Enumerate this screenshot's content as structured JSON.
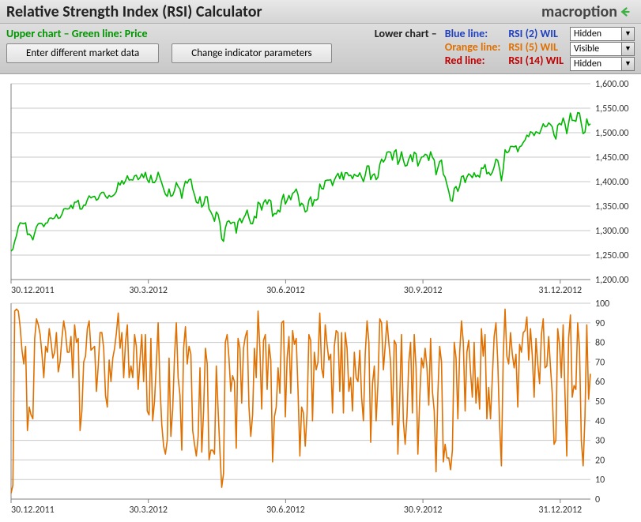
{
  "title": "Relative Strength Index (RSI) Calculator",
  "brand": "macroption",
  "toolbar": {
    "upper_legend_prefix": "Upper chart – Green line: ",
    "upper_legend_value": "Price",
    "btn_market": "Enter different market data",
    "btn_params": "Change indicator parameters",
    "lower_header": "Lower chart –",
    "lines": [
      {
        "label": "Blue line:",
        "series": "RSI (2) WIL",
        "color": "#2040c0",
        "dropdown": "Hidden"
      },
      {
        "label": "Orange line:",
        "series": "RSI (5) WIL",
        "color": "#e07000",
        "dropdown": "Visible"
      },
      {
        "label": "Red line:",
        "series": "RSI (14) WIL",
        "color": "#c00000",
        "dropdown": "Hidden"
      }
    ]
  },
  "upper_chart": {
    "type": "line",
    "line_color": "#00b700",
    "line_width": 1.6,
    "background": "#ffffff",
    "grid_color": "#c8c8c8",
    "axis_color": "#808080",
    "ylim": [
      1200,
      1600
    ],
    "ytick_step": 50,
    "ytick_format": "comma2dec",
    "x_categories": [
      "30.12.2011",
      "30.3.2012",
      "30.6.2012",
      "30.9.2012",
      "31.12.2012"
    ],
    "title_fontsize": 12,
    "data": [
      1258,
      1262,
      1278,
      1290,
      1308,
      1316,
      1315,
      1314,
      1316,
      1292,
      1293,
      1289,
      1281,
      1295,
      1308,
      1314,
      1315,
      1314,
      1308,
      1315,
      1316,
      1325,
      1326,
      1324,
      1326,
      1333,
      1325,
      1326,
      1333,
      1344,
      1345,
      1344,
      1345,
      1352,
      1345,
      1358,
      1358,
      1362,
      1344,
      1344,
      1352,
      1352,
      1363,
      1371,
      1367,
      1369,
      1370,
      1362,
      1365,
      1374,
      1378,
      1378,
      1370,
      1366,
      1372,
      1369,
      1371,
      1374,
      1380,
      1398,
      1393,
      1402,
      1395,
      1402,
      1412,
      1403,
      1404,
      1403,
      1412,
      1413,
      1404,
      1408,
      1416,
      1408,
      1419,
      1404,
      1398,
      1413,
      1398,
      1398,
      1404,
      1419,
      1408,
      1397,
      1385,
      1374,
      1370,
      1385,
      1370,
      1372,
      1382,
      1398,
      1390,
      1385,
      1366,
      1387,
      1401,
      1397,
      1404,
      1405,
      1385,
      1373,
      1358,
      1356,
      1369,
      1348,
      1353,
      1369,
      1369,
      1344,
      1338,
      1330,
      1319,
      1338,
      1333,
      1316,
      1283,
      1278,
      1305,
      1318,
      1320,
      1314,
      1317,
      1317,
      1295,
      1318,
      1325,
      1316,
      1325,
      1332,
      1342,
      1326,
      1314,
      1314,
      1329,
      1326,
      1358,
      1355,
      1342,
      1357,
      1363,
      1354,
      1363,
      1361,
      1329,
      1335,
      1334,
      1342,
      1338,
      1362,
      1374,
      1354,
      1362,
      1372,
      1363,
      1376,
      1379,
      1385,
      1373,
      1350,
      1356,
      1352,
      1338,
      1341,
      1362,
      1369,
      1350,
      1363,
      1362,
      1365,
      1395,
      1386,
      1385,
      1402,
      1403,
      1403,
      1404,
      1392,
      1403,
      1411,
      1417,
      1406,
      1419,
      1404,
      1418,
      1418,
      1412,
      1413,
      1406,
      1415,
      1412,
      1411,
      1418,
      1409,
      1400,
      1413,
      1432,
      1432,
      1404,
      1413,
      1416,
      1404,
      1409,
      1435,
      1446,
      1440,
      1446,
      1460,
      1461,
      1460,
      1444,
      1461,
      1465,
      1435,
      1444,
      1461,
      1444,
      1432,
      1433,
      1446,
      1455,
      1441,
      1460,
      1457,
      1432,
      1441,
      1450,
      1451,
      1456,
      1454,
      1443,
      1461,
      1450,
      1444,
      1414,
      1428,
      1441,
      1444,
      1415,
      1409,
      1394,
      1380,
      1362,
      1360,
      1386,
      1390,
      1380,
      1391,
      1410,
      1412,
      1398,
      1409,
      1416,
      1413,
      1408,
      1418,
      1410,
      1413,
      1409,
      1428,
      1427,
      1435,
      1416,
      1419,
      1413,
      1419,
      1430,
      1446,
      1443,
      1426,
      1402,
      1426,
      1465,
      1459,
      1461,
      1472,
      1472,
      1471,
      1473,
      1461,
      1471,
      1473,
      1480,
      1485,
      1495,
      1492,
      1502,
      1500,
      1494,
      1502,
      1500,
      1498,
      1508,
      1518,
      1512,
      1513,
      1520,
      1517,
      1512,
      1495,
      1487,
      1515,
      1519,
      1516,
      1530,
      1518,
      1498,
      1519,
      1540,
      1525,
      1525,
      1523,
      1541,
      1540,
      1518,
      1498,
      1501,
      1528,
      1515,
      1518
    ]
  },
  "lower_chart": {
    "type": "line",
    "line_color": "#e07000",
    "line_width": 1.6,
    "background": "#ffffff",
    "grid_color": "#c8c8c8",
    "axis_color": "#808080",
    "ylim": [
      0,
      100
    ],
    "ytick_step": 10,
    "x_categories": [
      "30.12.2011",
      "30.3.2012",
      "30.6.2012",
      "30.9.2012",
      "31.12.2012"
    ],
    "data": [
      3,
      7,
      96,
      97,
      96,
      88,
      76,
      69,
      78,
      35,
      47,
      43,
      41,
      82,
      92,
      89,
      84,
      74,
      62,
      78,
      75,
      87,
      80,
      72,
      75,
      85,
      65,
      70,
      82,
      91,
      85,
      75,
      75,
      83,
      62,
      89,
      80,
      82,
      35,
      45,
      70,
      73,
      87,
      91,
      76,
      77,
      78,
      55,
      68,
      85,
      85,
      77,
      53,
      47,
      71,
      60,
      72,
      77,
      85,
      95,
      77,
      85,
      62,
      80,
      89,
      62,
      68,
      62,
      84,
      78,
      56,
      71,
      84,
      60,
      84,
      45,
      43,
      82,
      40,
      50,
      69,
      90,
      58,
      38,
      27,
      23,
      30,
      72,
      32,
      46,
      73,
      90,
      62,
      53,
      25,
      77,
      88,
      69,
      78,
      74,
      35,
      28,
      22,
      32,
      67,
      24,
      45,
      77,
      69,
      20,
      25,
      25,
      23,
      68,
      46,
      25,
      6,
      13,
      80,
      84,
      72,
      55,
      63,
      60,
      26,
      82,
      77,
      49,
      77,
      83,
      86,
      47,
      32,
      43,
      77,
      62,
      96,
      77,
      46,
      81,
      84,
      56,
      79,
      71,
      19,
      42,
      47,
      67,
      54,
      90,
      91,
      42,
      72,
      83,
      54,
      86,
      79,
      82,
      55,
      22,
      47,
      44,
      27,
      44,
      84,
      81,
      40,
      75,
      66,
      70,
      95,
      67,
      62,
      89,
      79,
      71,
      74,
      44,
      78,
      86,
      85,
      55,
      85,
      44,
      85,
      77,
      55,
      62,
      45,
      75,
      62,
      60,
      76,
      52,
      40,
      74,
      91,
      80,
      29,
      59,
      68,
      40,
      59,
      92,
      90,
      66,
      78,
      91,
      80,
      70,
      38,
      81,
      79,
      23,
      51,
      84,
      40,
      28,
      42,
      70,
      80,
      44,
      84,
      67,
      23,
      51,
      72,
      67,
      77,
      67,
      48,
      82,
      55,
      45,
      14,
      54,
      78,
      70,
      19,
      28,
      21,
      21,
      15,
      25,
      80,
      72,
      41,
      75,
      91,
      80,
      45,
      75,
      81,
      65,
      52,
      80,
      49,
      62,
      46,
      87,
      73,
      84,
      41,
      57,
      41,
      62,
      83,
      90,
      70,
      38,
      17,
      73,
      97,
      73,
      69,
      85,
      74,
      67,
      74,
      47,
      79,
      75,
      85,
      86,
      93,
      71,
      87,
      73,
      52,
      82,
      69,
      59,
      84,
      92,
      67,
      68,
      83,
      68,
      54,
      28,
      30,
      87,
      79,
      62,
      89,
      54,
      22,
      82,
      94,
      52,
      58,
      56,
      90,
      77,
      30,
      17,
      42,
      89,
      51,
      64
    ]
  }
}
